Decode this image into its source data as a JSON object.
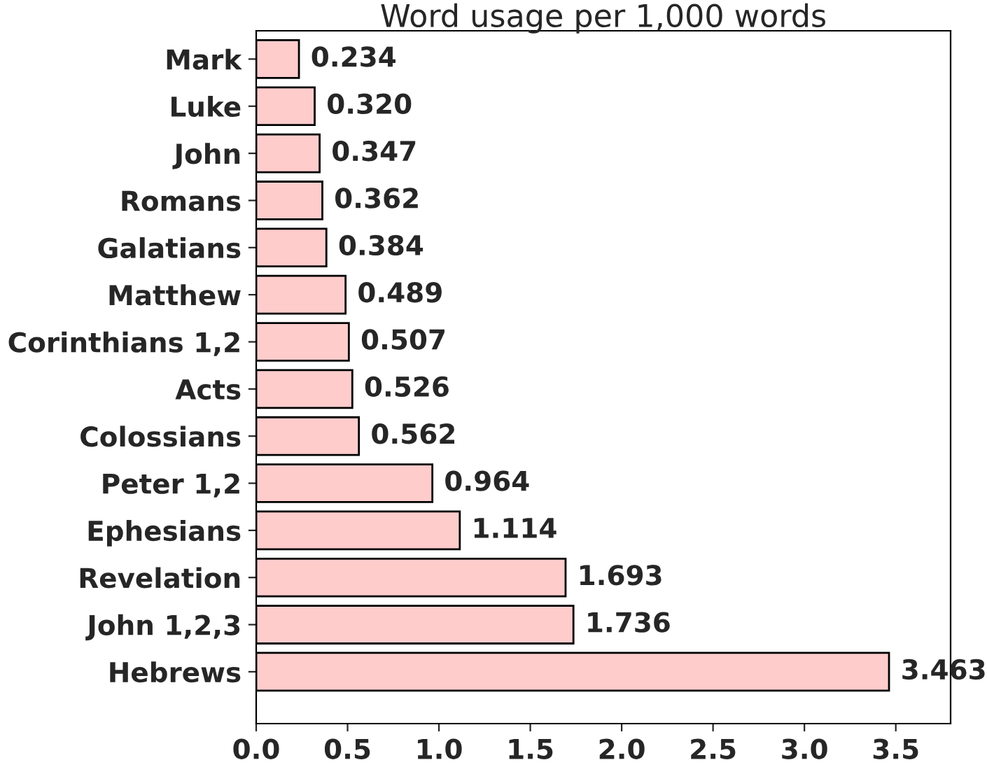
{
  "chart_data": {
    "type": "bar",
    "orientation": "horizontal",
    "title": "Word usage per 1,000 words",
    "categories": [
      "Mark",
      "Luke",
      "John",
      "Romans",
      "Galatians",
      "Matthew",
      "Corinthians 1,2",
      "Acts",
      "Colossians",
      "Peter 1,2",
      "Ephesians",
      "Revelation",
      "John 1,2,3",
      "Hebrews"
    ],
    "values": [
      0.234,
      0.32,
      0.347,
      0.362,
      0.384,
      0.489,
      0.507,
      0.526,
      0.562,
      0.964,
      1.114,
      1.693,
      1.736,
      3.463
    ],
    "value_labels": [
      "0.234",
      "0.320",
      "0.347",
      "0.362",
      "0.384",
      "0.489",
      "0.507",
      "0.526",
      "0.562",
      "0.964",
      "1.114",
      "1.693",
      "1.736",
      "3.463"
    ],
    "color": "#ffcccc",
    "xlim": [
      0,
      3.8
    ],
    "xticks": [
      {
        "value": 0,
        "label": "0.0"
      },
      {
        "value": 0.5,
        "label": "0.5"
      },
      {
        "value": 1,
        "label": "1.0"
      },
      {
        "value": 1.5,
        "label": "1.5"
      },
      {
        "value": 2,
        "label": "2.0"
      },
      {
        "value": 2.5,
        "label": "2.5"
      },
      {
        "value": 3,
        "label": "3.0"
      },
      {
        "value": 3.5,
        "label": "3.5"
      }
    ],
    "grid": false,
    "legend": false
  }
}
